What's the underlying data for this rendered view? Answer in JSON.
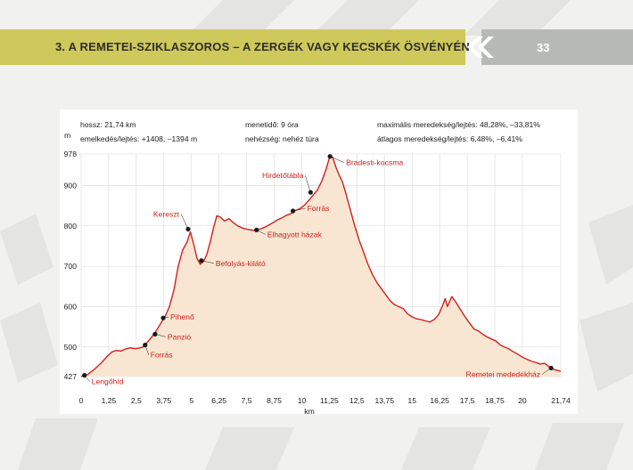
{
  "header": {
    "title": "3. A REMETEI-SZIKLASZOROS – A ZERGÉK VAGY KECSKÉK ÖSVÉNYÉN",
    "page_number": "33"
  },
  "colors": {
    "header_band": "#cfc85a",
    "profile_line": "#d2201c",
    "profile_fill": "#f9e6d2",
    "poi_label": "#d2201c"
  },
  "info": {
    "length": "hossz: 21,74 km",
    "ascent_descent": "emelkedés/lejtés: +1408, –1394 m",
    "duration": "menetidő: 9 óra",
    "difficulty": "nehézség: nehéz túra",
    "max_gradient": "maximális meredekség/lejtés: 48,28%, –33,81%",
    "avg_gradient": "átlagos meredekség/lejtés: 6,48%, –6,41%"
  },
  "chart_data": {
    "type": "area",
    "xlabel": "km",
    "ylabel": "m",
    "xlim": [
      0,
      21.74
    ],
    "ylim": [
      427,
      978
    ],
    "grid": true,
    "x_ticks": [
      "0",
      "1,25",
      "2,5",
      "3,75",
      "5",
      "6,25",
      "7,5",
      "8,75",
      "10",
      "11,25",
      "12,5",
      "13,75",
      "15",
      "16,25",
      "17,5",
      "18,75",
      "20",
      "21,74"
    ],
    "y_ticks": [
      "978",
      "900",
      "800",
      "700",
      "600",
      "500",
      "427"
    ],
    "profile": {
      "x": [
        0,
        0.3,
        0.6,
        0.9,
        1.2,
        1.4,
        1.6,
        1.8,
        2.0,
        2.2,
        2.5,
        2.8,
        3.0,
        3.2,
        3.4,
        3.6,
        3.8,
        4.0,
        4.2,
        4.4,
        4.6,
        4.8,
        4.95,
        5.1,
        5.25,
        5.4,
        5.55,
        5.7,
        5.85,
        6.0,
        6.15,
        6.3,
        6.5,
        6.7,
        6.9,
        7.1,
        7.3,
        7.5,
        7.7,
        7.9,
        8.1,
        8.3,
        8.5,
        8.7,
        8.9,
        9.1,
        9.3,
        9.5,
        9.7,
        9.9,
        10.1,
        10.3,
        10.5,
        10.7,
        10.9,
        11.1,
        11.25,
        11.4,
        11.55,
        11.7,
        11.85,
        12.0,
        12.2,
        12.4,
        12.6,
        12.8,
        13.0,
        13.2,
        13.4,
        13.6,
        13.8,
        14.0,
        14.2,
        14.4,
        14.6,
        14.8,
        15.0,
        15.2,
        15.4,
        15.6,
        15.8,
        16.0,
        16.2,
        16.4,
        16.5,
        16.6,
        16.8,
        17.0,
        17.2,
        17.4,
        17.6,
        17.8,
        18.0,
        18.2,
        18.4,
        18.6,
        18.8,
        19.0,
        19.2,
        19.4,
        19.6,
        19.8,
        20.0,
        20.2,
        20.4,
        20.6,
        20.8,
        21.0,
        21.2,
        21.4,
        21.74
      ],
      "y": [
        427,
        432,
        445,
        460,
        478,
        488,
        492,
        490,
        495,
        498,
        496,
        500,
        512,
        525,
        540,
        558,
        575,
        600,
        640,
        700,
        740,
        760,
        785,
        755,
        720,
        705,
        712,
        730,
        760,
        795,
        825,
        822,
        812,
        818,
        808,
        800,
        795,
        792,
        790,
        788,
        792,
        796,
        802,
        808,
        815,
        820,
        826,
        830,
        838,
        842,
        850,
        862,
        875,
        888,
        910,
        940,
        968,
        970,
        945,
        925,
        908,
        880,
        840,
        800,
        765,
        735,
        705,
        680,
        660,
        645,
        630,
        615,
        605,
        600,
        595,
        582,
        575,
        570,
        568,
        565,
        562,
        568,
        580,
        605,
        620,
        600,
        625,
        610,
        592,
        575,
        560,
        545,
        540,
        532,
        525,
        520,
        515,
        505,
        500,
        495,
        488,
        482,
        475,
        470,
        465,
        462,
        458,
        460,
        452,
        445,
        440
      ]
    },
    "points": [
      {
        "name": "Lengőhíd",
        "x": 0.15,
        "y": 430
      },
      {
        "name": "Forrás",
        "x": 2.9,
        "y": 505
      },
      {
        "name": "Panzió",
        "x": 3.35,
        "y": 532
      },
      {
        "name": "Pihenő",
        "x": 3.72,
        "y": 572
      },
      {
        "name": "Kereszt",
        "x": 4.85,
        "y": 792
      },
      {
        "name": "Befolyás-kilátó",
        "x": 5.45,
        "y": 714
      },
      {
        "name": "Elhagyott házak",
        "x": 7.95,
        "y": 790
      },
      {
        "name": "Forrás",
        "x": 9.6,
        "y": 837
      },
      {
        "name": "Hirdetőtábla",
        "x": 10.4,
        "y": 883
      },
      {
        "name": "Bradesti-kocsma",
        "x": 11.28,
        "y": 972
      },
      {
        "name": "Remetei mededékház",
        "x": 21.3,
        "y": 448
      }
    ]
  }
}
